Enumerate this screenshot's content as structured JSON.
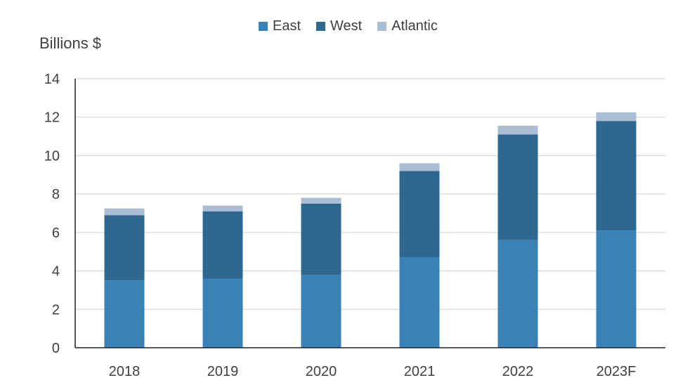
{
  "chart_data": {
    "type": "bar",
    "stacked": true,
    "ylabel": "Billions $",
    "categories": [
      "2018",
      "2019",
      "2020",
      "2021",
      "2022",
      "2023F"
    ],
    "ylim": [
      0,
      14
    ],
    "yticks": [
      0,
      2,
      4,
      6,
      8,
      10,
      12,
      14
    ],
    "grid": true,
    "legend_position": "top-center",
    "series": [
      {
        "name": "East",
        "color": "#3a82b5",
        "values": [
          3.5,
          3.6,
          3.8,
          4.7,
          5.6,
          6.1
        ]
      },
      {
        "name": "West",
        "color": "#2e6891",
        "values": [
          3.4,
          3.5,
          3.7,
          4.5,
          5.5,
          5.7
        ]
      },
      {
        "name": "Atlantic",
        "color": "#a9bdd4",
        "values": [
          0.35,
          0.3,
          0.3,
          0.4,
          0.45,
          0.45
        ]
      }
    ]
  }
}
